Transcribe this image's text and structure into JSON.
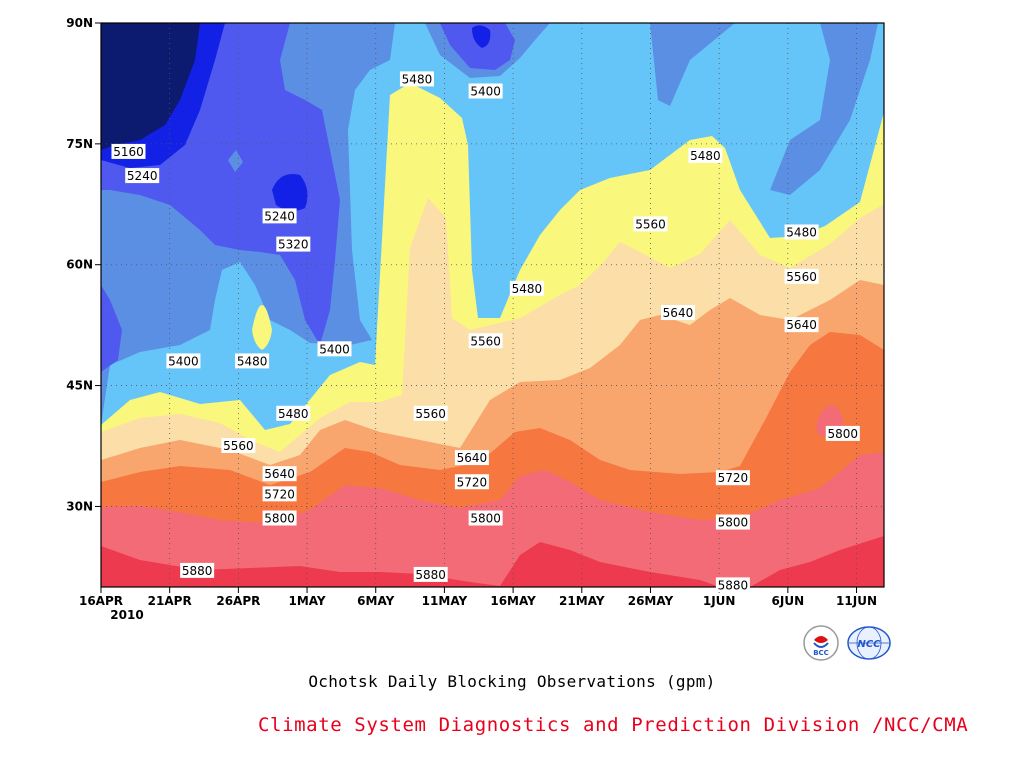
{
  "chart_data": {
    "type": "contour",
    "title": "Ochotsk Daily Blocking Observations (gpm)",
    "x_ticks": [
      "16APR",
      "21APR",
      "26APR",
      "1MAY",
      "6MAY",
      "11MAY",
      "16MAY",
      "21MAY",
      "26MAY",
      "1JUN",
      "6JUN",
      "11JUN"
    ],
    "x_year_label": "2010",
    "y_ticks": [
      "90N",
      "75N",
      "60N",
      "45N",
      "30N"
    ],
    "x_range": [
      "2010-04-16",
      "2010-06-12"
    ],
    "y_range": [
      20,
      90
    ],
    "grid": "dotted",
    "levels": [
      5160,
      5240,
      5320,
      5400,
      5480,
      5560,
      5640,
      5720,
      5800,
      5880
    ],
    "fill_colors": [
      "#0c1a70",
      "#1320e6",
      "#4f59ef",
      "#5b8fe4",
      "#66c5f8",
      "#f9f87c",
      "#fbdea8",
      "#f8a66d",
      "#f6773f",
      "#f36b76",
      "#ee3a4f"
    ],
    "contour_labels": [
      {
        "text": "5160",
        "x": "2010-04-18",
        "y": 74
      },
      {
        "text": "5240",
        "x": "2010-04-19",
        "y": 71
      },
      {
        "text": "5240",
        "x": "2010-04-29",
        "y": 66
      },
      {
        "text": "5320",
        "x": "2010-04-30",
        "y": 62.5
      },
      {
        "text": "5400",
        "x": "2010-04-22",
        "y": 48
      },
      {
        "text": "5480",
        "x": "2010-04-27",
        "y": 48
      },
      {
        "text": "5400",
        "x": "2010-05-03",
        "y": 49.5
      },
      {
        "text": "5480",
        "x": "2010-05-09",
        "y": 83
      },
      {
        "text": "5400",
        "x": "2010-05-14",
        "y": 81.5
      },
      {
        "text": "5480",
        "x": "2010-05-17",
        "y": 57
      },
      {
        "text": "5560",
        "x": "2010-05-14",
        "y": 50.5
      },
      {
        "text": "5480",
        "x": "2010-05-30",
        "y": 73.5
      },
      {
        "text": "5560",
        "x": "2010-05-26",
        "y": 65
      },
      {
        "text": "5640",
        "x": "2010-05-28",
        "y": 54
      },
      {
        "text": "5480",
        "x": "2010-06-06",
        "y": 64
      },
      {
        "text": "5560",
        "x": "2010-06-06",
        "y": 58.5
      },
      {
        "text": "5640",
        "x": "2010-06-06",
        "y": 52.5
      },
      {
        "text": "5480",
        "x": "2010-04-30",
        "y": 41.5
      },
      {
        "text": "5560",
        "x": "2010-04-26",
        "y": 37.5
      },
      {
        "text": "5560",
        "x": "2010-05-10",
        "y": 41.5
      },
      {
        "text": "5640",
        "x": "2010-04-29",
        "y": 34
      },
      {
        "text": "5720",
        "x": "2010-04-29",
        "y": 31.5
      },
      {
        "text": "5640",
        "x": "2010-05-13",
        "y": 36
      },
      {
        "text": "5720",
        "x": "2010-05-13",
        "y": 33
      },
      {
        "text": "5720",
        "x": "2010-06-01",
        "y": 33.5
      },
      {
        "text": "5800",
        "x": "2010-04-29",
        "y": 28.5
      },
      {
        "text": "5800",
        "x": "2010-05-14",
        "y": 28.5
      },
      {
        "text": "5800",
        "x": "2010-06-01",
        "y": 28
      },
      {
        "text": "5800",
        "x": "2010-06-09",
        "y": 39
      },
      {
        "text": "5880",
        "x": "2010-04-23",
        "y": 22
      },
      {
        "text": "5880",
        "x": "2010-05-10",
        "y": 21.5
      },
      {
        "text": "5880",
        "x": "2010-06-01",
        "y": 20.2
      }
    ]
  },
  "caption": {
    "credit": "Climate System Diagnostics and Prediction Division /NCC/CMA"
  },
  "logos": {
    "bcc_text": "BCC",
    "ncc_text": "NCC"
  }
}
